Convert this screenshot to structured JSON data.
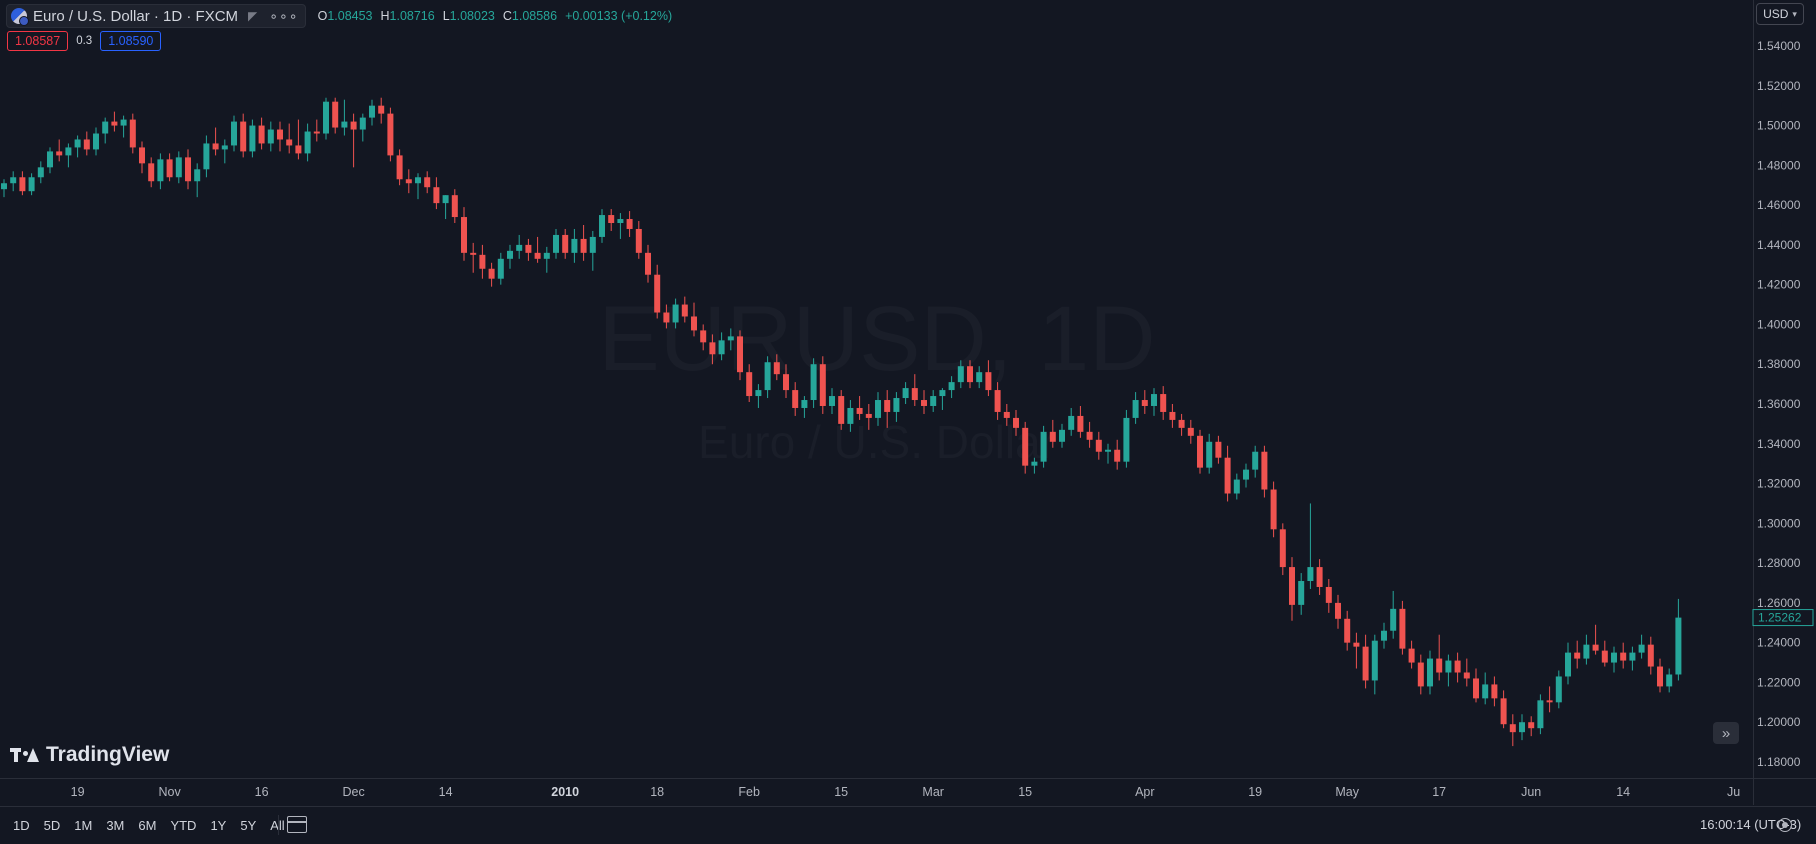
{
  "header": {
    "symbol_title": "Euro / U.S. Dollar · 1D · FXCM",
    "more_label": "∘∘∘",
    "ohlc": {
      "o_label": "O",
      "o_value": "1.08453",
      "h_label": "H",
      "h_value": "1.08716",
      "l_label": "L",
      "l_value": "1.08023",
      "c_label": "C",
      "c_value": "1.08586",
      "change": "+0.00133 (+0.12%)"
    },
    "bid": "1.08587",
    "spread": "0.3",
    "ask": "1.08590",
    "currency": "USD"
  },
  "watermark": {
    "symbol": "EURUSD, 1D",
    "description": "Euro / U.S. Dollar",
    "logo_text": "TradingView"
  },
  "bottom_bar": {
    "ranges": [
      "1D",
      "5D",
      "1M",
      "3M",
      "6M",
      "YTD",
      "1Y",
      "5Y",
      "All"
    ],
    "clock": "16:00:14 (UTC-3)"
  },
  "colors": {
    "background": "#131722",
    "up": "#26a69a",
    "down": "#ef5350",
    "text": "#d1d4dc",
    "axis_text": "#b2b5be"
  },
  "icons": {
    "flag": "eur-usd-flag-icon",
    "ruler": "ruler-icon",
    "more": "more-dots-icon",
    "currency_dropdown": "chevron-down-icon",
    "scroll": "scroll-to-realtime-icon",
    "goto": "goto-date-icon",
    "settings": "gear-icon"
  },
  "chart_data": {
    "type": "candlestick",
    "title": "",
    "xlabel": "",
    "ylabel": "",
    "ylim": [
      1.17,
      1.55
    ],
    "yticks": [
      "1.54000",
      "1.52000",
      "1.50000",
      "1.48000",
      "1.46000",
      "1.44000",
      "1.42000",
      "1.40000",
      "1.38000",
      "1.36000",
      "1.34000",
      "1.32000",
      "1.30000",
      "1.28000",
      "1.26000",
      "1.24000",
      "1.22000",
      "1.20000",
      "1.18000"
    ],
    "xticks": [
      {
        "label": "19",
        "index": 8
      },
      {
        "label": "Nov",
        "index": 18
      },
      {
        "label": "16",
        "index": 28
      },
      {
        "label": "Dec",
        "index": 38
      },
      {
        "label": "14",
        "index": 48
      },
      {
        "label": "2010",
        "index": 61
      },
      {
        "label": "18",
        "index": 71
      },
      {
        "label": "Feb",
        "index": 81
      },
      {
        "label": "15",
        "index": 91
      },
      {
        "label": "Mar",
        "index": 101
      },
      {
        "label": "15",
        "index": 111
      },
      {
        "label": "Apr",
        "index": 124
      },
      {
        "label": "19",
        "index": 136
      },
      {
        "label": "May",
        "index": 146
      },
      {
        "label": "17",
        "index": 156
      },
      {
        "label": "Jun",
        "index": 166
      },
      {
        "label": "14",
        "index": 176
      },
      {
        "label": "Ju",
        "index": 188
      }
    ],
    "last_price": "1.25262",
    "candles": [
      [
        1.468,
        1.473,
        1.464,
        1.471
      ],
      [
        1.471,
        1.477,
        1.467,
        1.474
      ],
      [
        1.474,
        1.477,
        1.465,
        1.467
      ],
      [
        1.467,
        1.476,
        1.465,
        1.474
      ],
      [
        1.474,
        1.482,
        1.471,
        1.479
      ],
      [
        1.479,
        1.489,
        1.476,
        1.487
      ],
      [
        1.487,
        1.493,
        1.482,
        1.485
      ],
      [
        1.485,
        1.491,
        1.479,
        1.489
      ],
      [
        1.489,
        1.495,
        1.484,
        1.493
      ],
      [
        1.493,
        1.497,
        1.485,
        1.488
      ],
      [
        1.488,
        1.499,
        1.485,
        1.496
      ],
      [
        1.496,
        1.504,
        1.491,
        1.502
      ],
      [
        1.502,
        1.507,
        1.497,
        1.5
      ],
      [
        1.5,
        1.505,
        1.494,
        1.503
      ],
      [
        1.503,
        1.506,
        1.486,
        1.489
      ],
      [
        1.489,
        1.492,
        1.476,
        1.481
      ],
      [
        1.481,
        1.484,
        1.469,
        1.472
      ],
      [
        1.472,
        1.486,
        1.468,
        1.483
      ],
      [
        1.483,
        1.486,
        1.472,
        1.474
      ],
      [
        1.474,
        1.487,
        1.471,
        1.484
      ],
      [
        1.484,
        1.488,
        1.468,
        1.472
      ],
      [
        1.472,
        1.481,
        1.464,
        1.478
      ],
      [
        1.478,
        1.495,
        1.474,
        1.491
      ],
      [
        1.491,
        1.499,
        1.485,
        1.488
      ],
      [
        1.488,
        1.493,
        1.481,
        1.49
      ],
      [
        1.49,
        1.505,
        1.487,
        1.502
      ],
      [
        1.502,
        1.506,
        1.484,
        1.487
      ],
      [
        1.487,
        1.503,
        1.484,
        1.5
      ],
      [
        1.5,
        1.504,
        1.488,
        1.491
      ],
      [
        1.491,
        1.502,
        1.487,
        1.498
      ],
      [
        1.498,
        1.502,
        1.487,
        1.493
      ],
      [
        1.493,
        1.501,
        1.486,
        1.49
      ],
      [
        1.49,
        1.503,
        1.483,
        1.486
      ],
      [
        1.486,
        1.501,
        1.482,
        1.497
      ],
      [
        1.497,
        1.503,
        1.492,
        1.496
      ],
      [
        1.496,
        1.514,
        1.493,
        1.512
      ],
      [
        1.512,
        1.514,
        1.496,
        1.499
      ],
      [
        1.499,
        1.513,
        1.495,
        1.502
      ],
      [
        1.502,
        1.506,
        1.479,
        1.498
      ],
      [
        1.498,
        1.506,
        1.492,
        1.504
      ],
      [
        1.504,
        1.513,
        1.5,
        1.51
      ],
      [
        1.51,
        1.514,
        1.501,
        1.506
      ],
      [
        1.506,
        1.509,
        1.482,
        1.485
      ],
      [
        1.485,
        1.488,
        1.47,
        1.473
      ],
      [
        1.473,
        1.478,
        1.466,
        1.471
      ],
      [
        1.471,
        1.476,
        1.463,
        1.474
      ],
      [
        1.474,
        1.477,
        1.466,
        1.469
      ],
      [
        1.469,
        1.474,
        1.458,
        1.461
      ],
      [
        1.461,
        1.465,
        1.453,
        1.465
      ],
      [
        1.465,
        1.468,
        1.451,
        1.454
      ],
      [
        1.454,
        1.459,
        1.432,
        1.436
      ],
      [
        1.436,
        1.441,
        1.426,
        1.435
      ],
      [
        1.435,
        1.44,
        1.423,
        1.428
      ],
      [
        1.428,
        1.431,
        1.419,
        1.423
      ],
      [
        1.423,
        1.436,
        1.42,
        1.433
      ],
      [
        1.433,
        1.44,
        1.428,
        1.437
      ],
      [
        1.437,
        1.445,
        1.433,
        1.44
      ],
      [
        1.44,
        1.443,
        1.432,
        1.436
      ],
      [
        1.436,
        1.444,
        1.431,
        1.433
      ],
      [
        1.433,
        1.439,
        1.426,
        1.436
      ],
      [
        1.436,
        1.448,
        1.433,
        1.445
      ],
      [
        1.445,
        1.448,
        1.433,
        1.436
      ],
      [
        1.436,
        1.448,
        1.431,
        1.443
      ],
      [
        1.443,
        1.45,
        1.432,
        1.436
      ],
      [
        1.436,
        1.447,
        1.427,
        1.444
      ],
      [
        1.444,
        1.458,
        1.441,
        1.455
      ],
      [
        1.455,
        1.458,
        1.447,
        1.451
      ],
      [
        1.451,
        1.456,
        1.443,
        1.453
      ],
      [
        1.453,
        1.457,
        1.444,
        1.448
      ],
      [
        1.448,
        1.452,
        1.433,
        1.436
      ],
      [
        1.436,
        1.44,
        1.421,
        1.425
      ],
      [
        1.425,
        1.43,
        1.403,
        1.406
      ],
      [
        1.406,
        1.41,
        1.398,
        1.401
      ],
      [
        1.401,
        1.413,
        1.398,
        1.41
      ],
      [
        1.41,
        1.414,
        1.401,
        1.404
      ],
      [
        1.404,
        1.411,
        1.394,
        1.397
      ],
      [
        1.397,
        1.4,
        1.387,
        1.391
      ],
      [
        1.391,
        1.395,
        1.38,
        1.385
      ],
      [
        1.385,
        1.396,
        1.382,
        1.392
      ],
      [
        1.392,
        1.398,
        1.387,
        1.394
      ],
      [
        1.394,
        1.397,
        1.372,
        1.376
      ],
      [
        1.376,
        1.38,
        1.361,
        1.364
      ],
      [
        1.364,
        1.37,
        1.358,
        1.367
      ],
      [
        1.367,
        1.384,
        1.363,
        1.381
      ],
      [
        1.381,
        1.385,
        1.372,
        1.375
      ],
      [
        1.375,
        1.38,
        1.363,
        1.367
      ],
      [
        1.367,
        1.371,
        1.354,
        1.358
      ],
      [
        1.358,
        1.364,
        1.353,
        1.362
      ],
      [
        1.362,
        1.383,
        1.358,
        1.38
      ],
      [
        1.38,
        1.384,
        1.355,
        1.359
      ],
      [
        1.359,
        1.368,
        1.355,
        1.364
      ],
      [
        1.364,
        1.367,
        1.347,
        1.35
      ],
      [
        1.35,
        1.362,
        1.346,
        1.358
      ],
      [
        1.358,
        1.364,
        1.352,
        1.355
      ],
      [
        1.355,
        1.36,
        1.347,
        1.353
      ],
      [
        1.353,
        1.366,
        1.349,
        1.362
      ],
      [
        1.362,
        1.367,
        1.348,
        1.356
      ],
      [
        1.356,
        1.366,
        1.351,
        1.363
      ],
      [
        1.363,
        1.371,
        1.36,
        1.368
      ],
      [
        1.368,
        1.375,
        1.359,
        1.362
      ],
      [
        1.362,
        1.367,
        1.355,
        1.359
      ],
      [
        1.359,
        1.367,
        1.356,
        1.364
      ],
      [
        1.364,
        1.368,
        1.357,
        1.367
      ],
      [
        1.367,
        1.374,
        1.363,
        1.371
      ],
      [
        1.371,
        1.382,
        1.368,
        1.379
      ],
      [
        1.379,
        1.382,
        1.368,
        1.371
      ],
      [
        1.371,
        1.379,
        1.368,
        1.376
      ],
      [
        1.376,
        1.382,
        1.364,
        1.367
      ],
      [
        1.367,
        1.371,
        1.352,
        1.356
      ],
      [
        1.356,
        1.36,
        1.349,
        1.353
      ],
      [
        1.353,
        1.357,
        1.344,
        1.348
      ],
      [
        1.348,
        1.351,
        1.325,
        1.329
      ],
      [
        1.329,
        1.333,
        1.325,
        1.331
      ],
      [
        1.331,
        1.349,
        1.328,
        1.346
      ],
      [
        1.346,
        1.352,
        1.338,
        1.341
      ],
      [
        1.341,
        1.35,
        1.338,
        1.347
      ],
      [
        1.347,
        1.358,
        1.344,
        1.354
      ],
      [
        1.354,
        1.359,
        1.343,
        1.346
      ],
      [
        1.346,
        1.351,
        1.338,
        1.342
      ],
      [
        1.342,
        1.346,
        1.332,
        1.336
      ],
      [
        1.336,
        1.34,
        1.33,
        1.337
      ],
      [
        1.337,
        1.342,
        1.327,
        1.331
      ],
      [
        1.331,
        1.357,
        1.328,
        1.353
      ],
      [
        1.353,
        1.366,
        1.35,
        1.362
      ],
      [
        1.362,
        1.367,
        1.355,
        1.359
      ],
      [
        1.359,
        1.368,
        1.354,
        1.365
      ],
      [
        1.365,
        1.369,
        1.352,
        1.356
      ],
      [
        1.356,
        1.36,
        1.348,
        1.352
      ],
      [
        1.352,
        1.355,
        1.344,
        1.348
      ],
      [
        1.348,
        1.352,
        1.34,
        1.344
      ],
      [
        1.344,
        1.347,
        1.325,
        1.328
      ],
      [
        1.328,
        1.345,
        1.325,
        1.341
      ],
      [
        1.341,
        1.344,
        1.33,
        1.333
      ],
      [
        1.333,
        1.339,
        1.311,
        1.315
      ],
      [
        1.315,
        1.325,
        1.312,
        1.322
      ],
      [
        1.322,
        1.33,
        1.318,
        1.327
      ],
      [
        1.327,
        1.339,
        1.323,
        1.336
      ],
      [
        1.336,
        1.339,
        1.313,
        1.317
      ],
      [
        1.317,
        1.321,
        1.293,
        1.297
      ],
      [
        1.297,
        1.3,
        1.274,
        1.278
      ],
      [
        1.278,
        1.283,
        1.251,
        1.259
      ],
      [
        1.259,
        1.275,
        1.254,
        1.271
      ],
      [
        1.271,
        1.31,
        1.267,
        1.278
      ],
      [
        1.278,
        1.282,
        1.264,
        1.268
      ],
      [
        1.268,
        1.272,
        1.255,
        1.26
      ],
      [
        1.26,
        1.264,
        1.247,
        1.252
      ],
      [
        1.252,
        1.256,
        1.236,
        1.24
      ],
      [
        1.24,
        1.245,
        1.227,
        1.238
      ],
      [
        1.238,
        1.244,
        1.217,
        1.221
      ],
      [
        1.221,
        1.244,
        1.214,
        1.241
      ],
      [
        1.241,
        1.25,
        1.237,
        1.246
      ],
      [
        1.246,
        1.266,
        1.242,
        1.257
      ],
      [
        1.257,
        1.261,
        1.234,
        1.237
      ],
      [
        1.237,
        1.241,
        1.227,
        1.23
      ],
      [
        1.23,
        1.234,
        1.214,
        1.218
      ],
      [
        1.218,
        1.236,
        1.214,
        1.232
      ],
      [
        1.232,
        1.244,
        1.221,
        1.225
      ],
      [
        1.225,
        1.234,
        1.218,
        1.231
      ],
      [
        1.231,
        1.235,
        1.22,
        1.225
      ],
      [
        1.225,
        1.232,
        1.218,
        1.222
      ],
      [
        1.222,
        1.227,
        1.21,
        1.212
      ],
      [
        1.212,
        1.225,
        1.209,
        1.219
      ],
      [
        1.219,
        1.223,
        1.208,
        1.212
      ],
      [
        1.212,
        1.216,
        1.197,
        1.199
      ],
      [
        1.199,
        1.204,
        1.188,
        1.195
      ],
      [
        1.195,
        1.204,
        1.191,
        1.2
      ],
      [
        1.2,
        1.203,
        1.193,
        1.197
      ],
      [
        1.197,
        1.214,
        1.194,
        1.211
      ],
      [
        1.211,
        1.218,
        1.205,
        1.21
      ],
      [
        1.21,
        1.226,
        1.207,
        1.223
      ],
      [
        1.223,
        1.24,
        1.219,
        1.235
      ],
      [
        1.235,
        1.241,
        1.227,
        1.232
      ],
      [
        1.232,
        1.244,
        1.229,
        1.239
      ],
      [
        1.239,
        1.249,
        1.234,
        1.236
      ],
      [
        1.236,
        1.241,
        1.228,
        1.23
      ],
      [
        1.23,
        1.238,
        1.225,
        1.235
      ],
      [
        1.235,
        1.24,
        1.227,
        1.231
      ],
      [
        1.231,
        1.238,
        1.226,
        1.235
      ],
      [
        1.235,
        1.244,
        1.232,
        1.239
      ],
      [
        1.239,
        1.243,
        1.224,
        1.228
      ],
      [
        1.228,
        1.232,
        1.215,
        1.218
      ],
      [
        1.218,
        1.227,
        1.215,
        1.224
      ],
      [
        1.224,
        1.262,
        1.221,
        1.2526
      ]
    ]
  }
}
